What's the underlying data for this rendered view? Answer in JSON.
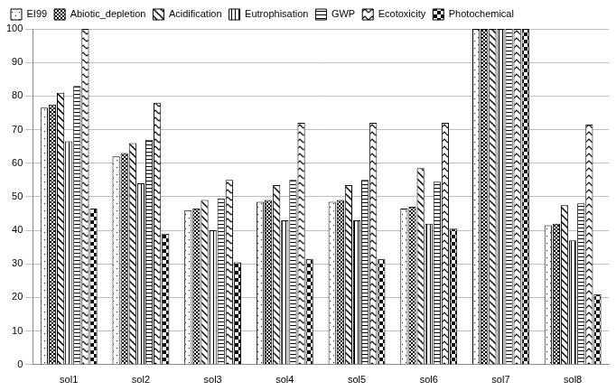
{
  "chart_data": {
    "type": "bar",
    "categories": [
      "sol1",
      "sol2",
      "sol3",
      "sol4",
      "sol5",
      "sol6",
      "sol7",
      "sol8"
    ],
    "series": [
      {
        "name": "EI99",
        "color": "#000000",
        "values": [
          76.5,
          62,
          46,
          48.5,
          48.5,
          46.5,
          100,
          41.5
        ]
      },
      {
        "name": "Abiotic_depletion",
        "color": "#000000",
        "values": [
          77.5,
          63,
          46.5,
          49,
          49,
          47,
          100,
          42
        ]
      },
      {
        "name": "Acidification",
        "color": "#000000",
        "values": [
          81,
          66,
          49,
          53.5,
          53.5,
          58.5,
          100,
          47.5
        ]
      },
      {
        "name": "Eutrophisation",
        "color": "#000000",
        "values": [
          66.5,
          54,
          40,
          43,
          43,
          42,
          100,
          37
        ]
      },
      {
        "name": "GWP",
        "color": "#000000",
        "values": [
          83,
          67,
          49.5,
          55,
          55,
          54.5,
          100,
          48
        ]
      },
      {
        "name": "Ecotoxicity",
        "color": "#000000",
        "values": [
          100,
          78,
          55,
          72,
          72,
          72,
          100,
          71.5
        ]
      },
      {
        "name": "Photochemical",
        "color": "#000000",
        "values": [
          46.5,
          39,
          30.5,
          31.5,
          31.5,
          40.5,
          100,
          21
        ]
      }
    ],
    "ylim": [
      0,
      100
    ],
    "yticks": [
      0,
      10,
      20,
      30,
      40,
      50,
      60,
      70,
      80,
      90,
      100
    ],
    "grid": true,
    "legend": "top"
  }
}
